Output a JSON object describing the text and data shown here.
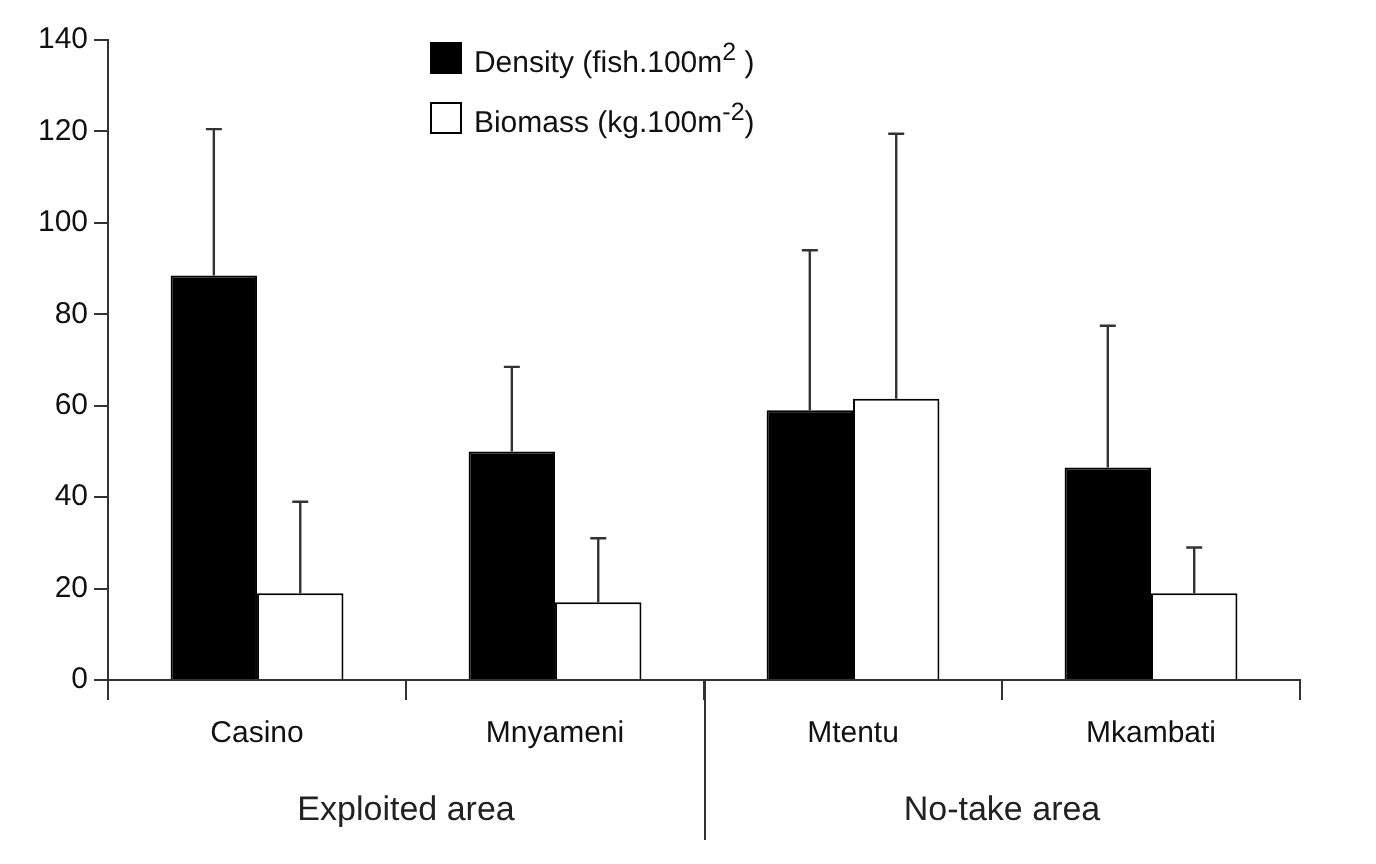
{
  "chart_data": {
    "type": "bar",
    "categories": [
      "Casino",
      "Mnyameni",
      "Mtentu",
      "Mkambati"
    ],
    "series": [
      {
        "name": "Density (fish.100m$^{2}$ )",
        "color": "#000000",
        "values": [
          88.5,
          50,
          59,
          46.5
        ],
        "errors": [
          32,
          18.5,
          35,
          31
        ]
      },
      {
        "name": "Biomass (kg.100m$^{-2}$)",
        "color": "#ffffff",
        "values": [
          19,
          17,
          61.5,
          19
        ],
        "errors": [
          20,
          14,
          58,
          10
        ]
      }
    ],
    "ylim": [
      0,
      140
    ],
    "yticks": [
      0,
      20,
      40,
      60,
      80,
      100,
      120,
      140
    ],
    "grid": false,
    "legend": "top",
    "annotations": [
      "Exploited area",
      "No-take area"
    ]
  }
}
